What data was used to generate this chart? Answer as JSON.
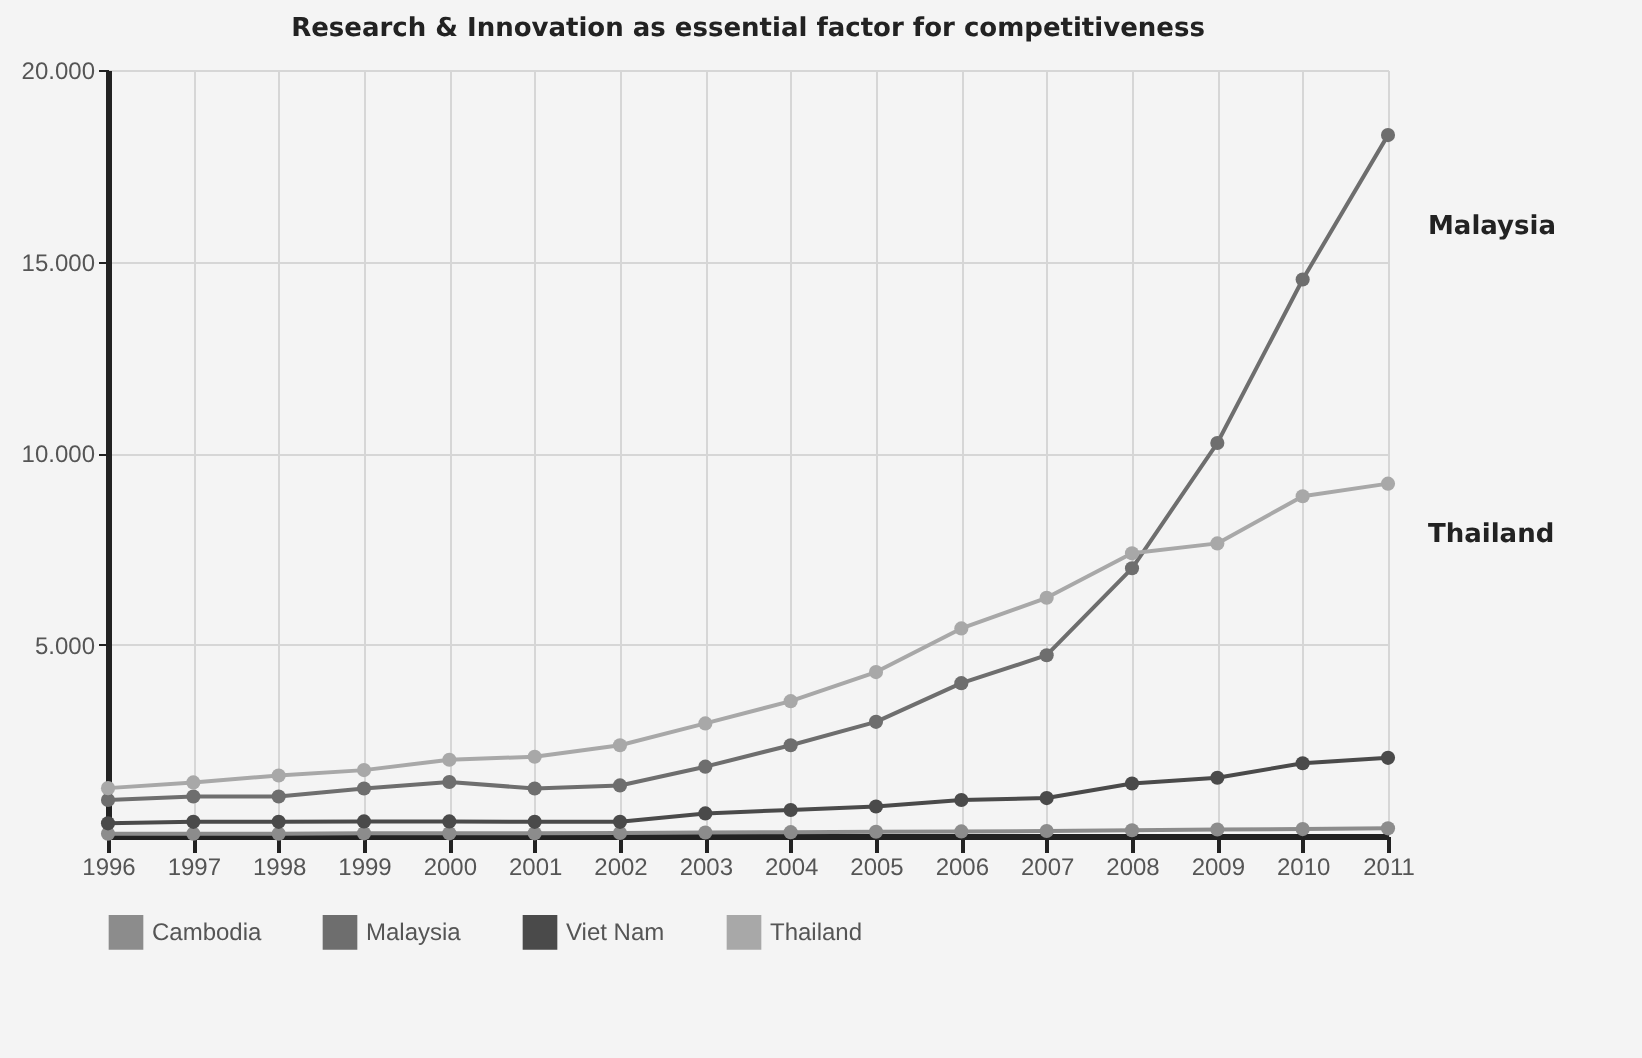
{
  "chart_data": {
    "type": "line",
    "title": "Research & Innovation as essential factor for competitiveness",
    "categories": [
      "1996",
      "1997",
      "1998",
      "1999",
      "2000",
      "2001",
      "2002",
      "2003",
      "2004",
      "2005",
      "2006",
      "2007",
      "2008",
      "2009",
      "2010",
      "2011"
    ],
    "series": [
      {
        "name": "Cambodia",
        "color": "#8c8c8c",
        "values": [
          60,
          60,
          60,
          70,
          70,
          70,
          80,
          90,
          100,
          110,
          120,
          130,
          150,
          170,
          180,
          200
        ]
      },
      {
        "name": "Malaysia",
        "color": "#6e6e6e",
        "values": [
          940,
          1030,
          1030,
          1240,
          1410,
          1240,
          1320,
          1810,
          2370,
          2980,
          3990,
          4720,
          6990,
          10260,
          14530,
          18300
        ]
      },
      {
        "name": "Viet Nam",
        "color": "#4a4a4a",
        "values": [
          330,
          370,
          370,
          380,
          380,
          370,
          370,
          590,
          680,
          770,
          940,
          990,
          1370,
          1520,
          1900,
          2040
        ]
      },
      {
        "name": "Thailand",
        "color": "#a8a8a8",
        "values": [
          1250,
          1400,
          1580,
          1720,
          1990,
          2070,
          2370,
          2940,
          3520,
          4280,
          5420,
          6220,
          7380,
          7640,
          8870,
          9200
        ]
      }
    ],
    "ylim": [
      0,
      20000
    ],
    "yticks": [
      {
        "value": 5000,
        "label": "5.000"
      },
      {
        "value": 10000,
        "label": "10.000"
      },
      {
        "value": 15000,
        "label": "15.000"
      },
      {
        "value": 20000,
        "label": "20.000"
      }
    ],
    "annotations": [
      "Malaysia",
      "Thailand"
    ],
    "grid": true,
    "legend": "bottom",
    "marker": "circle",
    "line_style": "solid"
  }
}
